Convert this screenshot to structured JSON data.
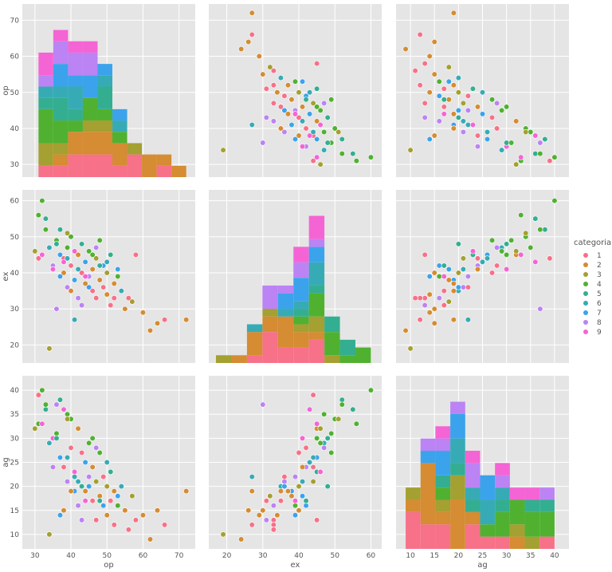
{
  "chart_data": {
    "type": "pairplot",
    "variables": [
      "op",
      "ex",
      "ag"
    ],
    "ranges": {
      "op": [
        26.5,
        74.5
      ],
      "ex": [
        15,
        63
      ],
      "ag": [
        7,
        43
      ]
    },
    "ticks": {
      "op": [
        30,
        40,
        50,
        60,
        70
      ],
      "ex": [
        20,
        30,
        40,
        50,
        60
      ],
      "ag": [
        10,
        15,
        20,
        25,
        30,
        35,
        40
      ]
    },
    "diagonal": "stacked histogram",
    "bins": {
      "op": [
        31,
        72,
        10
      ],
      "ex": [
        17,
        60,
        10
      ],
      "ag": [
        9,
        40,
        10
      ]
    },
    "grid": true,
    "legend": {
      "title": "categoria",
      "placement": "right",
      "entries": [
        "1",
        "2",
        "3",
        "4",
        "5",
        "6",
        "7",
        "8",
        "9"
      ]
    },
    "colors": [
      "#f77189",
      "#d58c32",
      "#a4a031",
      "#50b131",
      "#34ae91",
      "#37abb5",
      "#3ba3ec",
      "#bb83f4",
      "#f564d4"
    ],
    "point_fields": [
      "op",
      "ex",
      "ag",
      "categoria"
    ],
    "points": [
      [
        31,
        44,
        39,
        1
      ],
      [
        31,
        56,
        33,
        4
      ],
      [
        32,
        60,
        40,
        4
      ],
      [
        33,
        55,
        36,
        5
      ],
      [
        34,
        19,
        10,
        3
      ],
      [
        34,
        47,
        29,
        6
      ],
      [
        35,
        42,
        24,
        8
      ],
      [
        36,
        30,
        37,
        8
      ],
      [
        36,
        49,
        31,
        4
      ],
      [
        37,
        45,
        26,
        7
      ],
      [
        37,
        52,
        38,
        5
      ],
      [
        38,
        40,
        15,
        2
      ],
      [
        38,
        44,
        24,
        1
      ],
      [
        39,
        47,
        35,
        4
      ],
      [
        39,
        36,
        21,
        8
      ],
      [
        40,
        42,
        28,
        1
      ],
      [
        40,
        50,
        34,
        4
      ],
      [
        41,
        38,
        19,
        7
      ],
      [
        41,
        27,
        22,
        6
      ],
      [
        42,
        45,
        32,
        2
      ],
      [
        42,
        33,
        16,
        8
      ],
      [
        43,
        40,
        27,
        1
      ],
      [
        43,
        48,
        20,
        5
      ],
      [
        44,
        37,
        19,
        2
      ],
      [
        44,
        43,
        25,
        7
      ],
      [
        45,
        39,
        22,
        8
      ],
      [
        45,
        46,
        29,
        4
      ],
      [
        46,
        35,
        17,
        1
      ],
      [
        46,
        41,
        24,
        2
      ],
      [
        47,
        33,
        13,
        1
      ],
      [
        47,
        44,
        21,
        3
      ],
      [
        48,
        38,
        18,
        2
      ],
      [
        48,
        49,
        27,
        4
      ],
      [
        49,
        36,
        22,
        1
      ],
      [
        49,
        42,
        16,
        7
      ],
      [
        50,
        34,
        14,
        2
      ],
      [
        50,
        40,
        20,
        3
      ],
      [
        51,
        31,
        17,
        1
      ],
      [
        51,
        45,
        23,
        5
      ],
      [
        52,
        37,
        19,
        2
      ],
      [
        52,
        33,
        12,
        1
      ],
      [
        53,
        39,
        16,
        4
      ],
      [
        54,
        35,
        20,
        6
      ],
      [
        55,
        30,
        15,
        2
      ],
      [
        56,
        33,
        11,
        1
      ],
      [
        57,
        32,
        18,
        3
      ],
      [
        58,
        45,
        13,
        1
      ],
      [
        60,
        29,
        14,
        2
      ],
      [
        62,
        24,
        9,
        2
      ],
      [
        64,
        26,
        15,
        2
      ],
      [
        66,
        27,
        12,
        1
      ],
      [
        72,
        27,
        19,
        2
      ],
      [
        32,
        45,
        33,
        9
      ],
      [
        35,
        41,
        30,
        9
      ],
      [
        38,
        43,
        36,
        9
      ],
      [
        41,
        46,
        23,
        9
      ],
      [
        44,
        39,
        17,
        9
      ],
      [
        30,
        46,
        32,
        3
      ],
      [
        33,
        52,
        37,
        4
      ],
      [
        36,
        48,
        30,
        5
      ],
      [
        39,
        44,
        26,
        6
      ],
      [
        42,
        41,
        21,
        6
      ],
      [
        45,
        36,
        20,
        7
      ],
      [
        47,
        47,
        28,
        8
      ],
      [
        50,
        43,
        25,
        6
      ],
      [
        53,
        41,
        18,
        7
      ],
      [
        39,
        51,
        34,
        3
      ],
      [
        43,
        31,
        13,
        8
      ],
      [
        46,
        45,
        30,
        4
      ],
      [
        48,
        42,
        17,
        5
      ],
      [
        37,
        39,
        14,
        7
      ],
      [
        40,
        35,
        19,
        2
      ]
    ]
  }
}
